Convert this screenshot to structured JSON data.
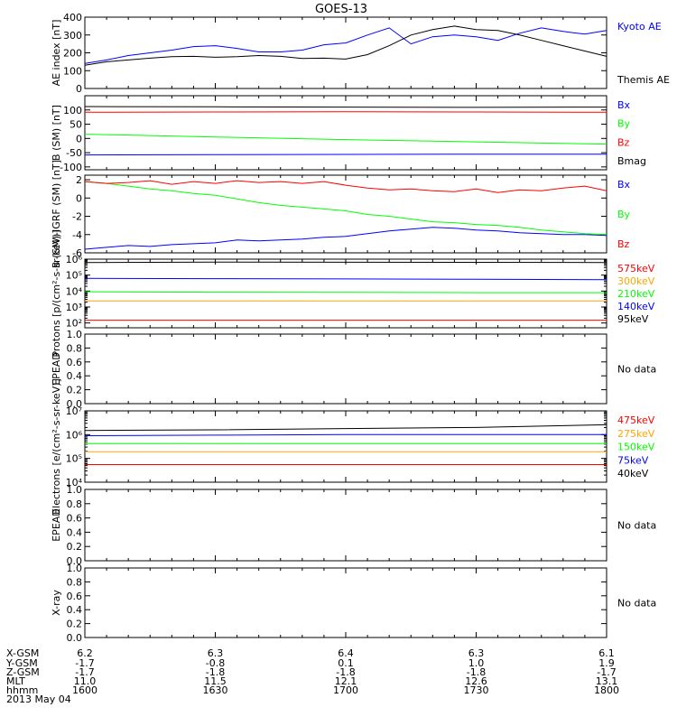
{
  "title": "GOES-13",
  "date_label": "2013 May 04",
  "colors": {
    "black": "#000000",
    "blue": "#0000ff",
    "green": "#00ff00",
    "red": "#ff0000",
    "orange": "#ffa500",
    "axis": "#000000"
  },
  "chart_data": [
    {
      "type": "line",
      "id": "ae",
      "ylabel": "AE index [nT]",
      "ylim": [
        0,
        400
      ],
      "yticks": [
        "0",
        "100",
        "200",
        "300",
        "400"
      ],
      "x": [
        1600,
        1605,
        1610,
        1615,
        1620,
        1625,
        1630,
        1635,
        1640,
        1645,
        1650,
        1655,
        1700,
        1705,
        1710,
        1715,
        1720,
        1725,
        1730,
        1735,
        1740,
        1745,
        1750,
        1755,
        1800
      ],
      "series": [
        {
          "name": "Kyoto AE",
          "color": "#0000ff",
          "values": [
            140,
            160,
            185,
            200,
            215,
            235,
            240,
            225,
            205,
            205,
            215,
            245,
            255,
            300,
            340,
            250,
            290,
            300,
            290,
            270,
            310,
            340,
            320,
            305,
            325
          ]
        },
        {
          "name": "Themis AE",
          "color": "#000000",
          "values": [
            130,
            150,
            160,
            170,
            178,
            180,
            175,
            178,
            185,
            180,
            168,
            170,
            165,
            190,
            240,
            300,
            330,
            350,
            330,
            325,
            300,
            270,
            240,
            210,
            180
          ]
        }
      ]
    },
    {
      "type": "line",
      "id": "bfield",
      "ylabel": "B (SM) [nT]",
      "ylim": [
        -110,
        150
      ],
      "yticks": [
        "-100",
        "-50",
        "0",
        "50",
        "100"
      ],
      "x": [
        1600,
        1630,
        1700,
        1730,
        1800
      ],
      "series": [
        {
          "name": "Bx",
          "color": "#0000ff",
          "values": [
            -58,
            -57,
            -56,
            -55,
            -55
          ]
        },
        {
          "name": "By",
          "color": "#00ff00",
          "values": [
            15,
            5,
            -4,
            -12,
            -20
          ]
        },
        {
          "name": "Bz",
          "color": "#ff0000",
          "values": [
            92,
            93,
            94,
            93,
            92
          ]
        },
        {
          "name": "Bmag",
          "color": "#000000",
          "values": [
            112,
            111,
            110,
            109,
            110
          ]
        }
      ]
    },
    {
      "type": "line",
      "id": "bdiff",
      "ylabel": "B (SM)-IGRF (SM) [nT]",
      "ylim": [
        -6,
        2.5
      ],
      "yticks": [
        "-6",
        "-4",
        "-2",
        "0",
        "2"
      ],
      "x": [
        1600,
        1605,
        1610,
        1615,
        1620,
        1625,
        1630,
        1635,
        1640,
        1645,
        1650,
        1655,
        1700,
        1705,
        1710,
        1715,
        1720,
        1725,
        1730,
        1735,
        1740,
        1745,
        1750,
        1755,
        1800
      ],
      "series": [
        {
          "name": "Bx",
          "color": "#0000ff",
          "values": [
            -5.6,
            -5.4,
            -5.2,
            -5.3,
            -5.1,
            -5.0,
            -4.9,
            -4.6,
            -4.7,
            -4.6,
            -4.5,
            -4.3,
            -4.2,
            -3.9,
            -3.6,
            -3.4,
            -3.2,
            -3.3,
            -3.5,
            -3.6,
            -3.8,
            -3.9,
            -4.0,
            -4.0,
            -4.1
          ]
        },
        {
          "name": "By",
          "color": "#00ff00",
          "values": [
            1.8,
            1.6,
            1.3,
            1.0,
            0.8,
            0.5,
            0.3,
            -0.1,
            -0.5,
            -0.8,
            -1.0,
            -1.2,
            -1.4,
            -1.8,
            -2.0,
            -2.3,
            -2.6,
            -2.7,
            -2.9,
            -3.0,
            -3.2,
            -3.5,
            -3.7,
            -3.9,
            -4.0
          ]
        },
        {
          "name": "Bz",
          "color": "#ff0000",
          "values": [
            1.8,
            1.6,
            1.7,
            1.9,
            1.5,
            1.8,
            1.6,
            1.9,
            1.7,
            1.8,
            1.6,
            1.8,
            1.4,
            1.1,
            0.9,
            1.0,
            0.8,
            0.7,
            1.0,
            0.6,
            0.9,
            0.8,
            1.1,
            1.3,
            0.8
          ]
        }
      ]
    },
    {
      "type": "line",
      "id": "protons",
      "ylabel": "Protons [p/(cm²-s-sr-keV)]",
      "yscale": "log",
      "ylim": [
        50,
        1000000
      ],
      "yticks": [
        "10²",
        "10³",
        "10⁴",
        "10⁵",
        "10⁶"
      ],
      "x": [
        1600,
        1630,
        1700,
        1730,
        1800
      ],
      "series": [
        {
          "name": "575keV",
          "color": "#ff0000",
          "values": [
            150,
            150,
            150,
            150,
            150
          ]
        },
        {
          "name": "300keV",
          "color": "#ffa500",
          "values": [
            2400,
            2400,
            2400,
            2400,
            2400
          ]
        },
        {
          "name": "210keV",
          "color": "#00ff00",
          "values": [
            9000,
            8500,
            8300,
            8000,
            8000
          ]
        },
        {
          "name": "140keV",
          "color": "#0000ff",
          "values": [
            62000,
            60000,
            58000,
            55000,
            52000
          ]
        },
        {
          "name": "95keV",
          "color": "#000000",
          "values": [
            620000,
            650000,
            640000,
            630000,
            620000
          ]
        }
      ]
    },
    {
      "type": "line",
      "id": "epead1",
      "ylabel": "EPEAD",
      "ylim": [
        0,
        1
      ],
      "yticks": [
        "0.0",
        "0.2",
        "0.4",
        "0.6",
        "0.8",
        "1.0"
      ],
      "note": "No data",
      "series": []
    },
    {
      "type": "line",
      "id": "electrons",
      "ylabel": "Electrons [e/(cm²-s-sr-keV)]",
      "yscale": "log",
      "ylim": [
        10000,
        10000000
      ],
      "yticks": [
        "10⁴",
        "10⁵",
        "10⁶",
        "10⁷"
      ],
      "x": [
        1600,
        1630,
        1700,
        1730,
        1800
      ],
      "series": [
        {
          "name": "475keV",
          "color": "#ff0000",
          "values": [
            55000,
            55000,
            55000,
            55000,
            55000
          ]
        },
        {
          "name": "275keV",
          "color": "#ffa500",
          "values": [
            190000,
            190000,
            190000,
            190000,
            190000
          ]
        },
        {
          "name": "150keV",
          "color": "#00ff00",
          "values": [
            420000,
            420000,
            420000,
            420000,
            420000
          ]
        },
        {
          "name": "75keV",
          "color": "#0000ff",
          "values": [
            900000,
            950000,
            1000000,
            1000000,
            1000000
          ]
        },
        {
          "name": "40keV",
          "color": "#000000",
          "values": [
            1500000,
            1600000,
            1800000,
            2000000,
            2600000
          ]
        }
      ]
    },
    {
      "type": "line",
      "id": "epead2",
      "ylabel": "EPEAD",
      "ylim": [
        0,
        1
      ],
      "yticks": [
        "0.0",
        "0.2",
        "0.4",
        "0.6",
        "0.8",
        "1.0"
      ],
      "note": "No data",
      "series": []
    },
    {
      "type": "line",
      "id": "xray",
      "ylabel": "X-ray",
      "ylim": [
        0,
        1
      ],
      "yticks": [
        "0.0",
        "0.2",
        "0.4",
        "0.6",
        "0.8",
        "1.0"
      ],
      "note": "No data",
      "series": []
    }
  ],
  "ephemeris": {
    "labels": [
      "X-GSM",
      "Y-GSM",
      "Z-GSM",
      "MLT",
      "hhmm"
    ],
    "columns": [
      [
        "6.2",
        "-1.7",
        "-1.7",
        "11.0",
        "1600"
      ],
      [
        "6.3",
        "-0.8",
        "-1.8",
        "11.5",
        "1630"
      ],
      [
        "6.4",
        "0.1",
        "-1.8",
        "12.1",
        "1700"
      ],
      [
        "6.3",
        "1.0",
        "-1.8",
        "12.6",
        "1730"
      ],
      [
        "6.1",
        "1.9",
        "-1.7",
        "13.1",
        "1800"
      ]
    ]
  }
}
